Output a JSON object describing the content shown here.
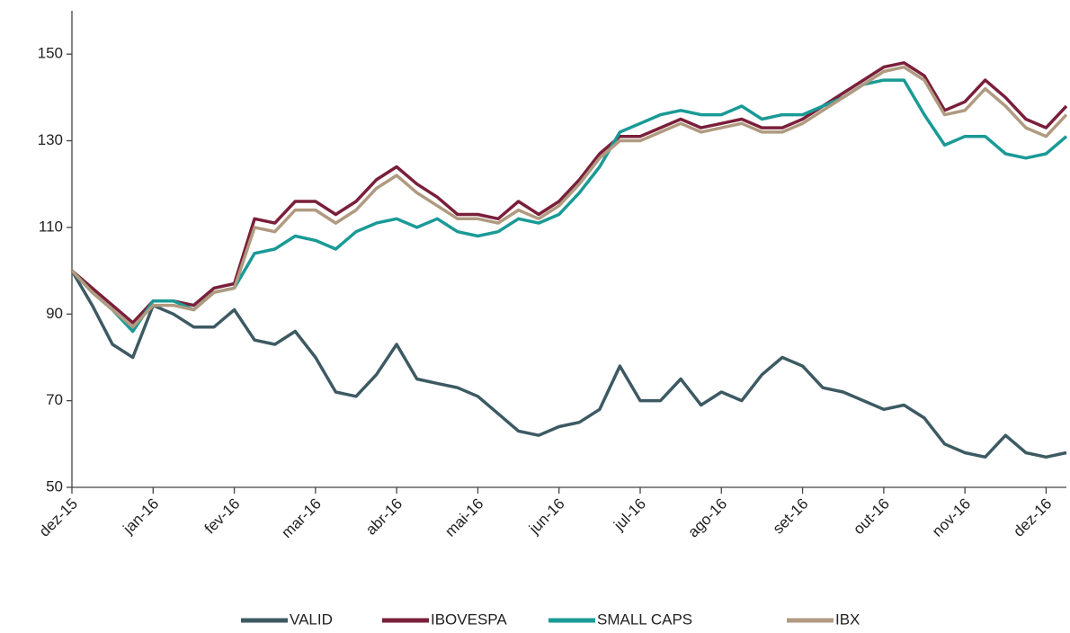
{
  "chart_data": {
    "type": "line",
    "categories": [
      "dez-15",
      null,
      null,
      null,
      "jan-16",
      null,
      null,
      null,
      "fev-16",
      null,
      null,
      null,
      "mar-16",
      null,
      null,
      null,
      "abr-16",
      null,
      null,
      null,
      "mai-16",
      null,
      null,
      null,
      "jun-16",
      null,
      null,
      null,
      "jul-16",
      null,
      null,
      null,
      "ago-16",
      null,
      null,
      null,
      "set-16",
      null,
      null,
      null,
      "out-16",
      null,
      null,
      null,
      "nov-16",
      null,
      null,
      null,
      "dez-16",
      null
    ],
    "series": [
      {
        "name": "VALID",
        "color": "#3d5a63",
        "values": [
          100,
          92,
          83,
          80,
          92,
          90,
          87,
          87,
          91,
          84,
          83,
          86,
          80,
          72,
          71,
          76,
          83,
          75,
          74,
          73,
          71,
          67,
          63,
          62,
          64,
          65,
          68,
          78,
          70,
          70,
          75,
          69,
          72,
          70,
          76,
          80,
          78,
          73,
          72,
          70,
          68,
          69,
          66,
          60,
          58,
          57,
          62,
          58,
          57,
          58
        ]
      },
      {
        "name": "IBOVESPA",
        "color": "#7a1f3a",
        "values": [
          100,
          96,
          92,
          88,
          93,
          93,
          92,
          96,
          97,
          112,
          111,
          116,
          116,
          113,
          116,
          121,
          124,
          120,
          117,
          113,
          113,
          112,
          116,
          113,
          116,
          121,
          127,
          131,
          131,
          133,
          135,
          133,
          134,
          135,
          133,
          133,
          135,
          138,
          141,
          144,
          147,
          148,
          145,
          137,
          139,
          144,
          140,
          135,
          133,
          138
        ]
      },
      {
        "name": "SMALL CAPS",
        "color": "#1a9a96",
        "values": [
          100,
          95,
          91,
          86,
          93,
          93,
          91,
          95,
          96,
          104,
          105,
          108,
          107,
          105,
          109,
          111,
          112,
          110,
          112,
          109,
          108,
          109,
          112,
          111,
          113,
          118,
          124,
          132,
          134,
          136,
          137,
          136,
          136,
          138,
          135,
          136,
          136,
          138,
          140,
          143,
          144,
          144,
          136,
          129,
          131,
          131,
          127,
          126,
          127,
          131
        ]
      },
      {
        "name": "IBX",
        "color": "#b09a80",
        "values": [
          100,
          95,
          91,
          87,
          92,
          92,
          91,
          95,
          96,
          110,
          109,
          114,
          114,
          111,
          114,
          119,
          122,
          118,
          115,
          112,
          112,
          111,
          114,
          112,
          115,
          120,
          126,
          130,
          130,
          132,
          134,
          132,
          133,
          134,
          132,
          132,
          134,
          137,
          140,
          143,
          146,
          147,
          144,
          136,
          137,
          142,
          138,
          133,
          131,
          136
        ]
      }
    ],
    "ylim": [
      50,
      160
    ],
    "yticks": [
      50,
      70,
      90,
      110,
      130,
      150
    ],
    "grid": false,
    "legend": "bottom"
  }
}
